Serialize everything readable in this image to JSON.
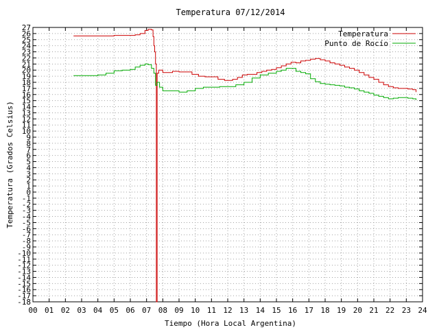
{
  "chart_data": {
    "type": "line",
    "title": "Temperatura 07/12/2014",
    "xlabel": "Tiempo (Hora Local Argentina)",
    "ylabel": "Temperatura (Grados Celsius)",
    "xlim": [
      0,
      24
    ],
    "ylim": [
      -18,
      27
    ],
    "x_ticks": [
      0,
      1,
      2,
      3,
      4,
      5,
      6,
      7,
      8,
      9,
      10,
      11,
      12,
      13,
      14,
      15,
      16,
      17,
      18,
      19,
      20,
      21,
      22,
      23,
      24
    ],
    "x_tick_labels": [
      "00",
      "01",
      "02",
      "03",
      "04",
      "05",
      "06",
      "07",
      "08",
      "09",
      "10",
      "11",
      "12",
      "13",
      "14",
      "15",
      "16",
      "17",
      "18",
      "19",
      "20",
      "21",
      "22",
      "23",
      "24"
    ],
    "y_ticks": [
      -18,
      -17,
      -16,
      -15,
      -14,
      -13,
      -12,
      -11,
      -10,
      -9,
      -8,
      -7,
      -6,
      -5,
      -4,
      -3,
      -2,
      -1,
      0,
      1,
      2,
      3,
      4,
      5,
      6,
      7,
      8,
      9,
      10,
      11,
      12,
      13,
      14,
      15,
      16,
      17,
      18,
      19,
      20,
      21,
      22,
      23,
      24,
      25,
      26,
      27
    ],
    "grid": true,
    "legend_position": "top-right",
    "series": [
      {
        "name": "Temperatura",
        "color": "#cc0000",
        "x": [
          2.5,
          3.0,
          3.5,
          4.0,
          4.5,
          5.0,
          5.5,
          6.0,
          6.3,
          6.6,
          6.9,
          7.1,
          7.2,
          7.3,
          7.4,
          7.45,
          7.5,
          7.55,
          7.6,
          7.6,
          7.6,
          7.65,
          7.75,
          8.0,
          8.3,
          8.6,
          9.0,
          9.4,
          9.8,
          10.2,
          10.6,
          11.0,
          11.4,
          11.8,
          12.0,
          12.3,
          12.6,
          12.9,
          13.2,
          13.5,
          13.8,
          14.1,
          14.4,
          14.7,
          15.0,
          15.3,
          15.6,
          15.9,
          16.2,
          16.5,
          16.8,
          17.1,
          17.4,
          17.7,
          18.0,
          18.3,
          18.6,
          18.9,
          19.2,
          19.5,
          19.8,
          20.1,
          20.4,
          20.7,
          21.0,
          21.3,
          21.6,
          21.9,
          22.2,
          22.5,
          22.8,
          23.1,
          23.4,
          23.6
        ],
        "y": [
          25.6,
          25.6,
          25.6,
          25.6,
          25.6,
          25.7,
          25.7,
          25.7,
          25.8,
          26.0,
          26.5,
          26.7,
          26.7,
          26.6,
          25.5,
          24.0,
          23.0,
          21.0,
          19.0,
          0.0,
          -18.0,
          19.5,
          20.0,
          19.6,
          19.6,
          19.8,
          19.7,
          19.7,
          19.3,
          19.0,
          18.9,
          18.9,
          18.5,
          18.3,
          18.3,
          18.5,
          18.8,
          19.2,
          19.3,
          19.3,
          19.6,
          19.8,
          20.0,
          20.1,
          20.4,
          20.7,
          21.0,
          21.3,
          21.2,
          21.5,
          21.6,
          21.8,
          21.9,
          21.7,
          21.5,
          21.2,
          21.0,
          20.8,
          20.5,
          20.3,
          20.0,
          19.6,
          19.2,
          18.8,
          18.5,
          18.0,
          17.6,
          17.3,
          17.1,
          17.0,
          17.0,
          16.9,
          16.8,
          16.4
        ]
      },
      {
        "name": "Punto de Rocío",
        "color": "#00aa00",
        "x": [
          2.5,
          3.0,
          3.5,
          4.0,
          4.5,
          5.0,
          5.5,
          6.0,
          6.3,
          6.6,
          6.9,
          7.1,
          7.3,
          7.45,
          7.55,
          7.65,
          7.8,
          8.0,
          8.5,
          9.0,
          9.5,
          10.0,
          10.5,
          11.0,
          11.5,
          12.0,
          12.5,
          13.0,
          13.5,
          14.0,
          14.5,
          15.0,
          15.3,
          15.6,
          15.9,
          16.2,
          16.5,
          16.8,
          17.1,
          17.4,
          17.7,
          18.0,
          18.3,
          18.6,
          18.9,
          19.2,
          19.5,
          19.8,
          20.1,
          20.4,
          20.7,
          21.0,
          21.3,
          21.6,
          21.9,
          22.2,
          22.5,
          22.8,
          23.1,
          23.4,
          23.6
        ],
        "y": [
          19.1,
          19.1,
          19.1,
          19.2,
          19.5,
          19.9,
          20.0,
          20.1,
          20.5,
          20.8,
          21.0,
          20.9,
          20.3,
          19.5,
          17.5,
          18.0,
          17.2,
          16.6,
          16.6,
          16.4,
          16.6,
          17.0,
          17.2,
          17.2,
          17.3,
          17.3,
          17.6,
          18.0,
          18.7,
          19.2,
          19.5,
          19.8,
          20.0,
          20.3,
          20.3,
          19.8,
          19.6,
          19.4,
          18.6,
          18.1,
          17.8,
          17.7,
          17.6,
          17.5,
          17.4,
          17.2,
          17.1,
          16.9,
          16.6,
          16.4,
          16.2,
          15.9,
          15.7,
          15.5,
          15.3,
          15.4,
          15.5,
          15.5,
          15.4,
          15.3,
          15.1
        ]
      }
    ]
  }
}
